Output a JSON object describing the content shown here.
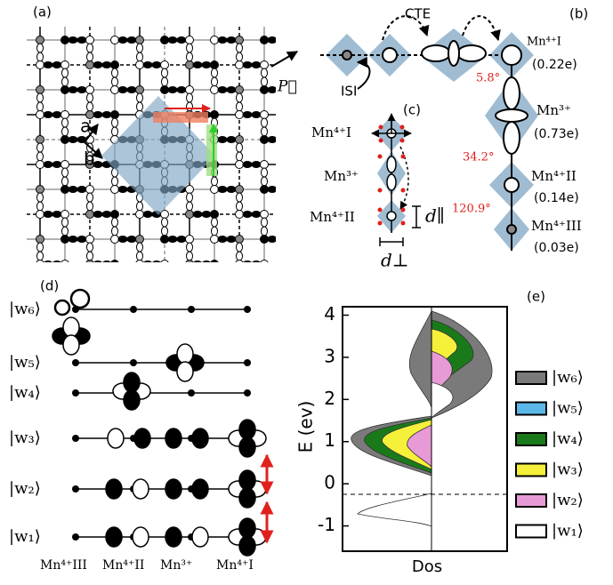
{
  "panel_a": {
    "label": "(a)",
    "axis_a": "a",
    "axis_b": "b",
    "vector": "P⃗"
  },
  "panel_b": {
    "label": "(b)",
    "cte": "CTE",
    "isi": "ISI",
    "sites": [
      {
        "name": "Mn⁴⁺I",
        "charge": "(0.22e)"
      },
      {
        "name": "Mn³⁺",
        "charge": "(0.73e)"
      },
      {
        "name": "Mn⁴⁺II",
        "charge": "(0.14e)"
      },
      {
        "name": "Mn⁴⁺III",
        "charge": "(0.03e)"
      }
    ],
    "angles": [
      "5.8°",
      "34.2°",
      "120.9°"
    ]
  },
  "panel_c": {
    "label": "(c)",
    "sites": [
      "Mn⁴⁺I",
      "Mn³⁺",
      "Mn⁴⁺II"
    ],
    "d_par": "d∥",
    "d_perp": "d⊥"
  },
  "panel_d": {
    "label": "(d)",
    "states": [
      "|w₆⟩",
      "|w₅⟩",
      "|w₄⟩",
      "|w₃⟩",
      "|w₂⟩",
      "|w₁⟩"
    ],
    "sites": [
      "Mn⁴⁺III",
      "Mn⁴⁺II",
      "Mn³⁺",
      "Mn⁴⁺I"
    ]
  },
  "panel_e": {
    "label": "(e)",
    "ylabel": "E (ev)",
    "xlabel": "Dos",
    "ylim": [
      -1.6,
      4.2
    ],
    "yticks": [
      -1,
      0,
      1,
      2,
      3,
      4
    ],
    "fermi_level": -0.25,
    "legend": [
      {
        "name": "|w₆⟩",
        "color": "#7a7a7a"
      },
      {
        "name": "|w₅⟩",
        "color": "#5bb8e8"
      },
      {
        "name": "|w₄⟩",
        "color": "#1a7a1a"
      },
      {
        "name": "|w₃⟩",
        "color": "#f5f03a"
      },
      {
        "name": "|w₂⟩",
        "color": "#e79ad6"
      },
      {
        "name": "|w₁⟩",
        "color": "#ffffff"
      }
    ]
  }
}
